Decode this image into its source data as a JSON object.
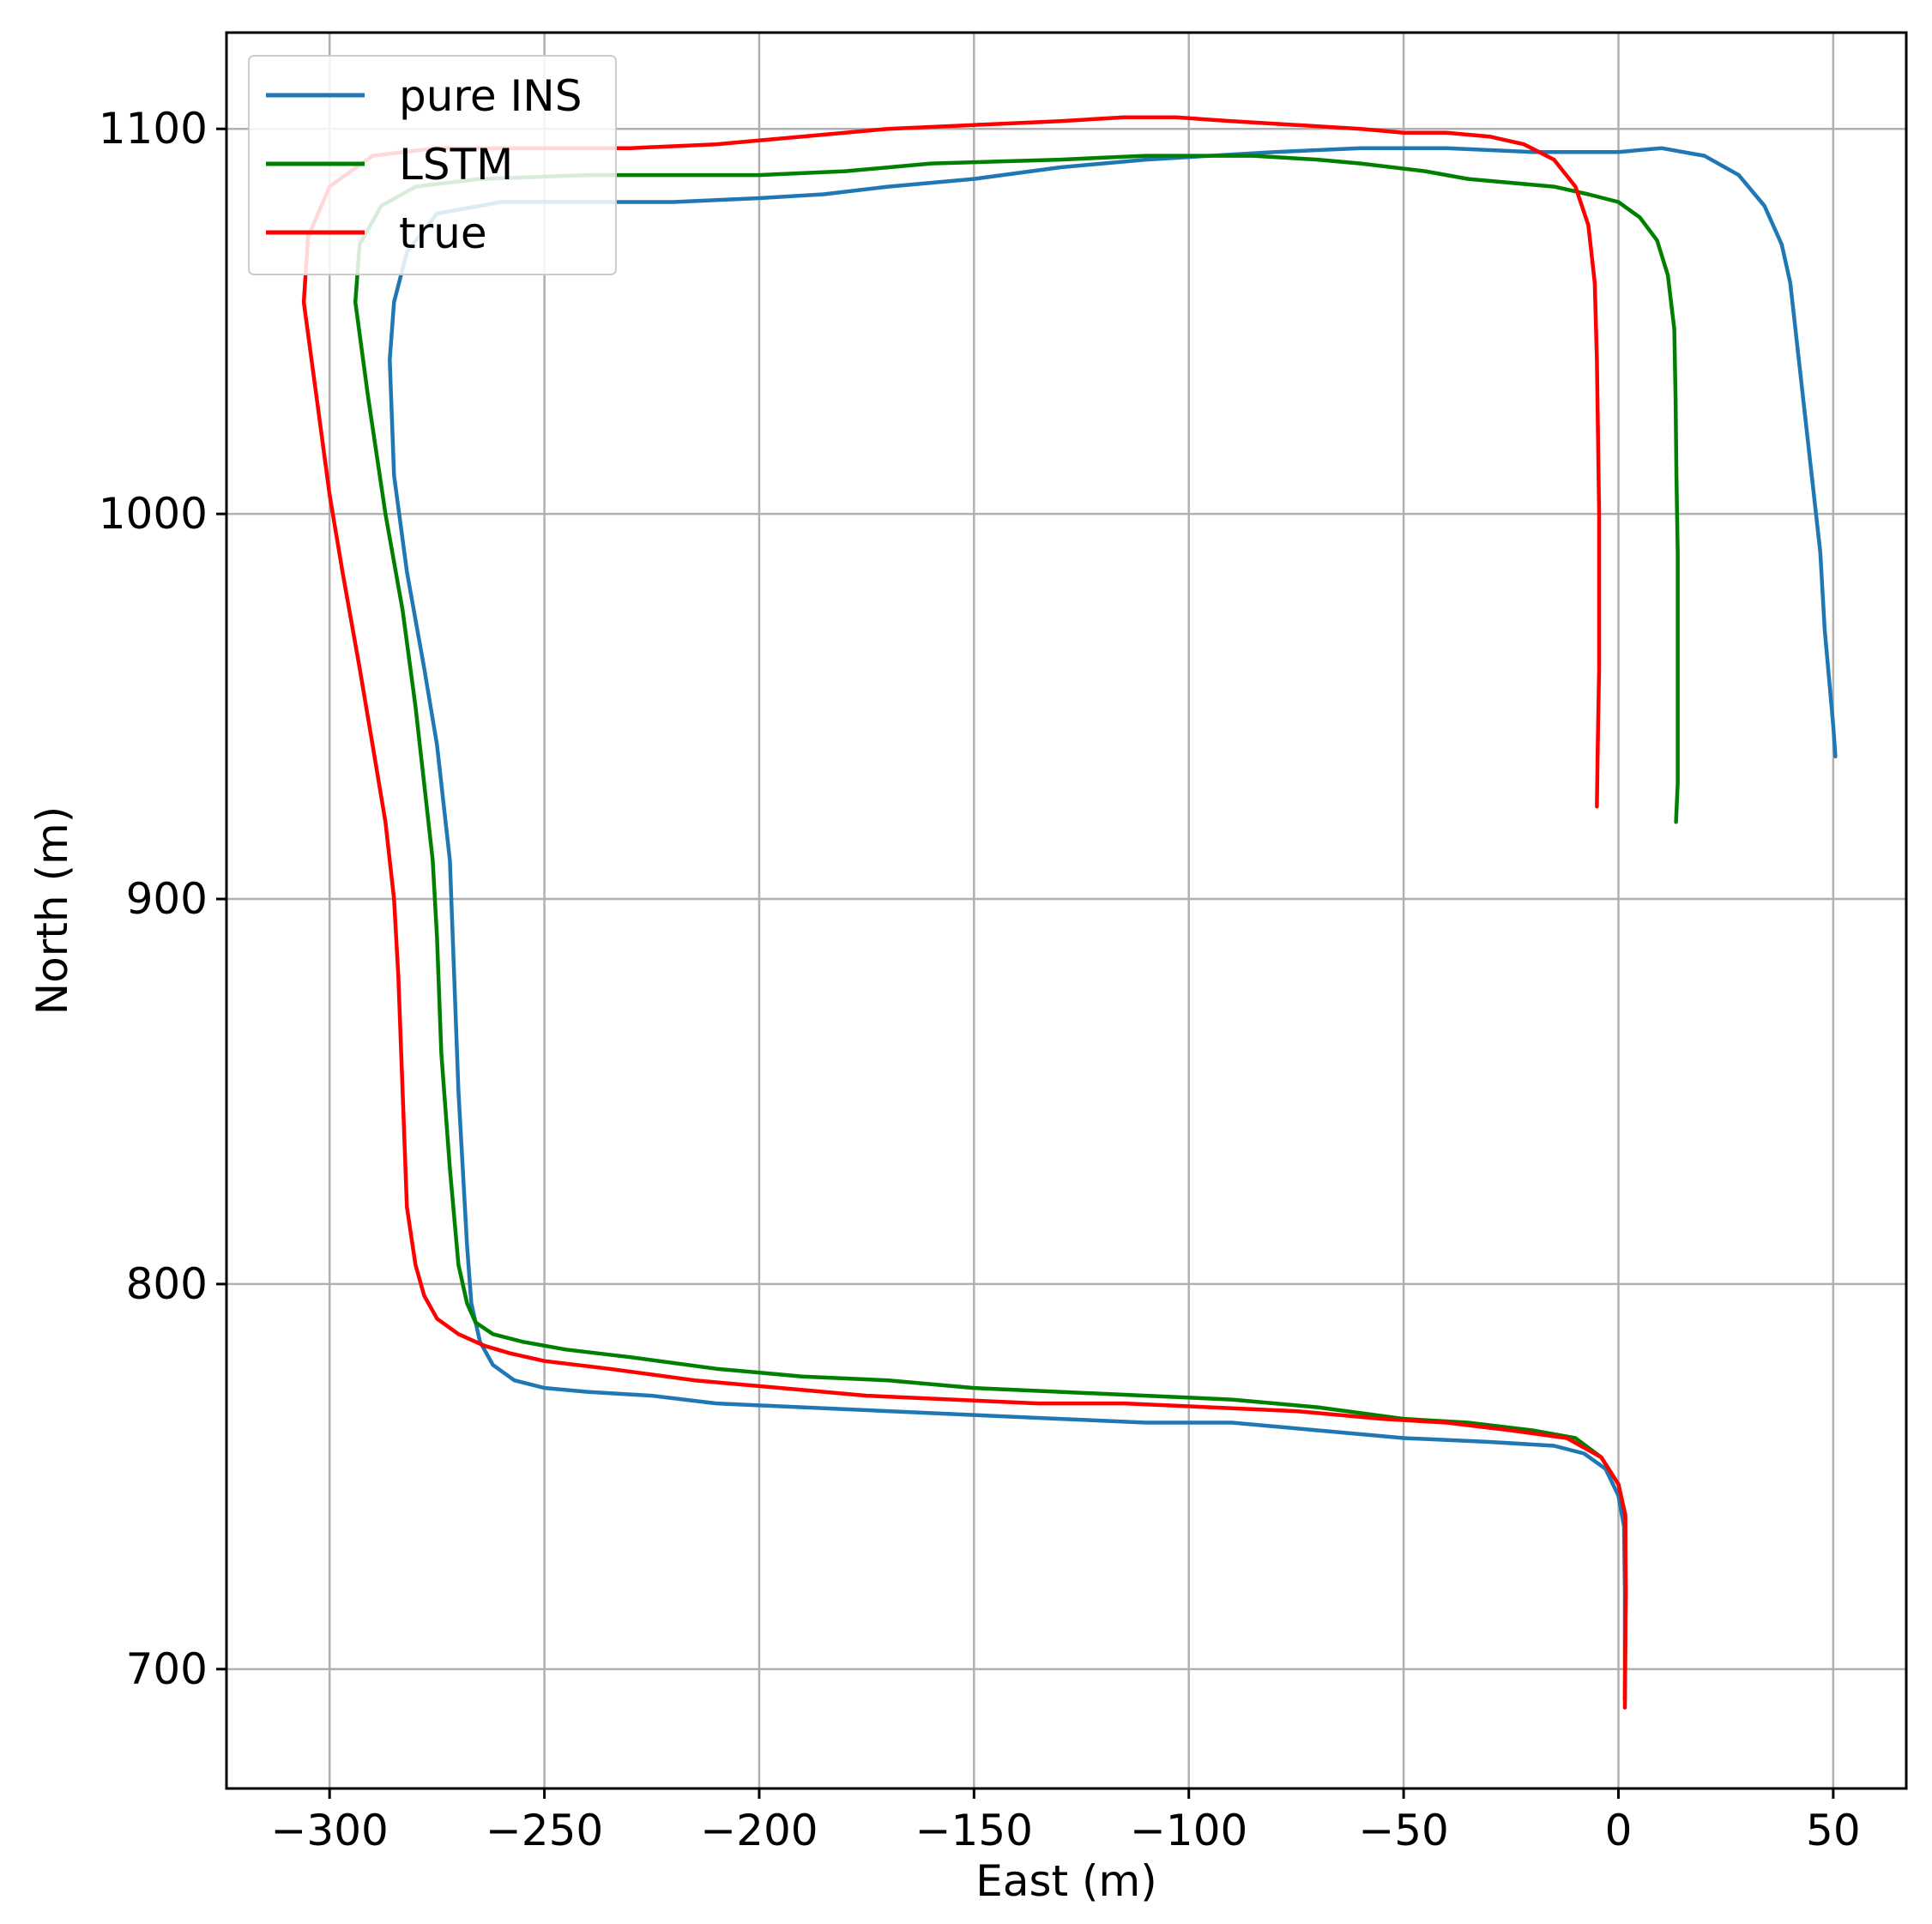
{
  "chart_data": {
    "type": "line",
    "title": "",
    "xlabel": "East (m)",
    "ylabel": "North (m)",
    "xlim": [
      -324,
      67
    ],
    "ylim": [
      669,
      1125
    ],
    "xticks": [
      -300,
      -250,
      -200,
      -150,
      -100,
      -50,
      0,
      50
    ],
    "yticks": [
      700,
      800,
      900,
      1000,
      1100
    ],
    "grid": true,
    "legend_position": "top-left",
    "series": [
      {
        "name": "pure INS",
        "color": "#1f77b4",
        "points": [
          [
            1.5,
            692
          ],
          [
            1.5,
            720
          ],
          [
            1.3,
            737
          ],
          [
            0,
            745
          ],
          [
            -3,
            752
          ],
          [
            -8,
            756
          ],
          [
            -15,
            758
          ],
          [
            -30,
            759
          ],
          [
            -50,
            760
          ],
          [
            -70,
            762
          ],
          [
            -90,
            764
          ],
          [
            -110,
            764
          ],
          [
            -130,
            765
          ],
          [
            -150,
            766
          ],
          [
            -170,
            767
          ],
          [
            -190,
            768
          ],
          [
            -210,
            769
          ],
          [
            -225,
            771
          ],
          [
            -240,
            772
          ],
          [
            -250,
            773
          ],
          [
            -257,
            775
          ],
          [
            -262,
            779
          ],
          [
            -265,
            785
          ],
          [
            -267,
            795
          ],
          [
            -268,
            810
          ],
          [
            -270,
            850
          ],
          [
            -271,
            880
          ],
          [
            -272,
            910
          ],
          [
            -275,
            940
          ],
          [
            -278,
            960
          ],
          [
            -282,
            985
          ],
          [
            -285,
            1010
          ],
          [
            -286,
            1040
          ],
          [
            -285,
            1055
          ],
          [
            -282,
            1068
          ],
          [
            -275,
            1078
          ],
          [
            -260,
            1081
          ],
          [
            -240,
            1081
          ],
          [
            -220,
            1081
          ],
          [
            -200,
            1082
          ],
          [
            -185,
            1083
          ],
          [
            -170,
            1085
          ],
          [
            -150,
            1087
          ],
          [
            -130,
            1090
          ],
          [
            -110,
            1092
          ],
          [
            -95,
            1093
          ],
          [
            -80,
            1094
          ],
          [
            -60,
            1095
          ],
          [
            -40,
            1095
          ],
          [
            -20,
            1094
          ],
          [
            0,
            1094
          ],
          [
            10,
            1095
          ],
          [
            20,
            1093
          ],
          [
            28,
            1088
          ],
          [
            34,
            1080
          ],
          [
            38,
            1070
          ],
          [
            40,
            1060
          ],
          [
            42,
            1040
          ],
          [
            45,
            1010
          ],
          [
            47,
            990
          ],
          [
            48,
            970
          ],
          [
            50,
            945
          ],
          [
            50.5,
            937
          ]
        ]
      },
      {
        "name": "LSTM",
        "color": "#008000",
        "points": [
          [
            1.5,
            692
          ],
          [
            1.7,
            720
          ],
          [
            1.6,
            740
          ],
          [
            0,
            748
          ],
          [
            -4,
            755
          ],
          [
            -10,
            760
          ],
          [
            -20,
            762
          ],
          [
            -35,
            764
          ],
          [
            -50,
            765
          ],
          [
            -70,
            768
          ],
          [
            -90,
            770
          ],
          [
            -110,
            771
          ],
          [
            -130,
            772
          ],
          [
            -150,
            773
          ],
          [
            -170,
            775
          ],
          [
            -190,
            776
          ],
          [
            -210,
            778
          ],
          [
            -230,
            781
          ],
          [
            -245,
            783
          ],
          [
            -255,
            785
          ],
          [
            -262,
            787
          ],
          [
            -266,
            790
          ],
          [
            -268,
            795
          ],
          [
            -270,
            805
          ],
          [
            -272,
            830
          ],
          [
            -274,
            860
          ],
          [
            -275,
            890
          ],
          [
            -276,
            910
          ],
          [
            -278,
            930
          ],
          [
            -280,
            950
          ],
          [
            -283,
            975
          ],
          [
            -287,
            1000
          ],
          [
            -291,
            1030
          ],
          [
            -294,
            1055
          ],
          [
            -293,
            1070
          ],
          [
            -288,
            1080
          ],
          [
            -280,
            1085
          ],
          [
            -265,
            1087
          ],
          [
            -240,
            1088
          ],
          [
            -220,
            1088
          ],
          [
            -200,
            1088
          ],
          [
            -180,
            1089
          ],
          [
            -160,
            1091
          ],
          [
            -130,
            1092
          ],
          [
            -110,
            1093
          ],
          [
            -100,
            1093
          ],
          [
            -85,
            1093
          ],
          [
            -70,
            1092
          ],
          [
            -60,
            1091
          ],
          [
            -45,
            1089
          ],
          [
            -35,
            1087
          ],
          [
            -25,
            1086
          ],
          [
            -15,
            1085
          ],
          [
            -7,
            1083
          ],
          [
            0,
            1081
          ],
          [
            5,
            1077
          ],
          [
            9,
            1071
          ],
          [
            11.5,
            1062
          ],
          [
            13,
            1048
          ],
          [
            13.3,
            1030
          ],
          [
            13.5,
            1010
          ],
          [
            13.8,
            990
          ],
          [
            13.8,
            960
          ],
          [
            13.8,
            930
          ],
          [
            13.4,
            920
          ]
        ]
      },
      {
        "name": "true",
        "color": "#ff0000",
        "points": [
          [
            1.5,
            690
          ],
          [
            1.7,
            720
          ],
          [
            1.6,
            740
          ],
          [
            0,
            748
          ],
          [
            -4,
            755
          ],
          [
            -12,
            760
          ],
          [
            -25,
            762
          ],
          [
            -40,
            764
          ],
          [
            -55,
            765
          ],
          [
            -75,
            767
          ],
          [
            -95,
            768
          ],
          [
            -115,
            769
          ],
          [
            -135,
            769
          ],
          [
            -155,
            770
          ],
          [
            -175,
            771
          ],
          [
            -195,
            773
          ],
          [
            -215,
            775
          ],
          [
            -235,
            778
          ],
          [
            -250,
            780
          ],
          [
            -258,
            782
          ],
          [
            -264,
            784
          ],
          [
            -270,
            787
          ],
          [
            -275,
            791
          ],
          [
            -278,
            797
          ],
          [
            -280,
            805
          ],
          [
            -282,
            820
          ],
          [
            -283,
            850
          ],
          [
            -284,
            880
          ],
          [
            -285,
            900
          ],
          [
            -287,
            920
          ],
          [
            -290,
            940
          ],
          [
            -293,
            960
          ],
          [
            -297,
            985
          ],
          [
            -300,
            1005
          ],
          [
            -303,
            1030
          ],
          [
            -306,
            1055
          ],
          [
            -305,
            1072
          ],
          [
            -300,
            1085
          ],
          [
            -290,
            1093
          ],
          [
            -275,
            1095
          ],
          [
            -255,
            1095
          ],
          [
            -230,
            1095
          ],
          [
            -210,
            1096
          ],
          [
            -190,
            1098
          ],
          [
            -170,
            1100
          ],
          [
            -150,
            1101
          ],
          [
            -130,
            1102
          ],
          [
            -115,
            1103
          ],
          [
            -103,
            1103
          ],
          [
            -90,
            1102
          ],
          [
            -75,
            1101
          ],
          [
            -60,
            1100
          ],
          [
            -50,
            1099
          ],
          [
            -40,
            1099
          ],
          [
            -30,
            1098
          ],
          [
            -22,
            1096
          ],
          [
            -15,
            1092
          ],
          [
            -10,
            1085
          ],
          [
            -7,
            1075
          ],
          [
            -5.5,
            1060
          ],
          [
            -5,
            1040
          ],
          [
            -4.5,
            1000
          ],
          [
            -4.5,
            960
          ],
          [
            -4.8,
            940
          ],
          [
            -5,
            924
          ]
        ]
      }
    ]
  }
}
